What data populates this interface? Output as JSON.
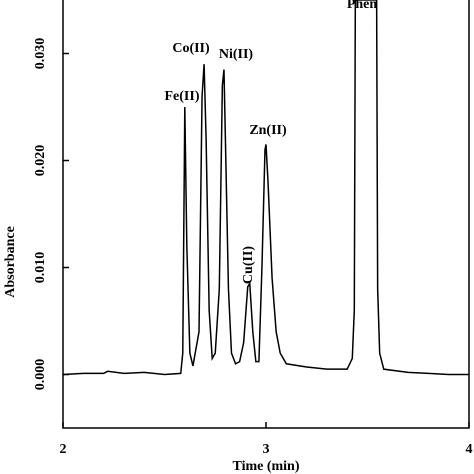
{
  "chart_data": {
    "type": "line",
    "x_label": "Time (min)",
    "y_label": "Absorbance",
    "xlim": [
      2,
      4
    ],
    "ylim": [
      -0.005,
      0.035
    ],
    "xticks": [
      2,
      3,
      4
    ],
    "yticks": [
      {
        "value": 0,
        "label": "0.000"
      },
      {
        "value": 0.01,
        "label": "0.010"
      },
      {
        "value": 0.02,
        "label": "0.020"
      },
      {
        "value": 0.03,
        "label": "0.030"
      }
    ],
    "annotations": [
      "Fe(II)",
      "Co(II)",
      "Ni(II)",
      "Cu(II)",
      "Zn(II)",
      "Phen"
    ],
    "series": [
      {
        "color": "#000000",
        "x": [
          2.0,
          2.1,
          2.2,
          2.22,
          2.3,
          2.4,
          2.5,
          2.58,
          2.59,
          2.6,
          2.61,
          2.625,
          2.64,
          2.67,
          2.685,
          2.695,
          2.705,
          2.72,
          2.735,
          2.75,
          2.77,
          2.785,
          2.793,
          2.8,
          2.815,
          2.83,
          2.85,
          2.87,
          2.89,
          2.91,
          2.92,
          2.935,
          2.95,
          2.965,
          2.98,
          2.995,
          3.0,
          3.01,
          3.03,
          3.05,
          3.07,
          3.1,
          3.2,
          3.3,
          3.4,
          3.425,
          3.435,
          3.44,
          3.545,
          3.55,
          3.56,
          3.58,
          3.7,
          3.8,
          3.9,
          4.0
        ],
        "values": [
          0,
          0.0001,
          0.0001,
          0.0003,
          0.0001,
          0.0002,
          0,
          0.0001,
          0.002,
          0.025,
          0.012,
          0.002,
          0.0008,
          0.004,
          0.026,
          0.029,
          0.022,
          0.006,
          0.0015,
          0.002,
          0.008,
          0.027,
          0.0285,
          0.022,
          0.008,
          0.002,
          0.001,
          0.0012,
          0.003,
          0.0082,
          0.0085,
          0.004,
          0.0012,
          0.0012,
          0.01,
          0.021,
          0.0215,
          0.018,
          0.009,
          0.004,
          0.002,
          0.001,
          0.0007,
          0.0005,
          0.0005,
          0.0015,
          0.006,
          0.035,
          0.035,
          0.008,
          0.002,
          0.0005,
          0.0002,
          0.0001,
          0,
          0
        ]
      }
    ]
  }
}
